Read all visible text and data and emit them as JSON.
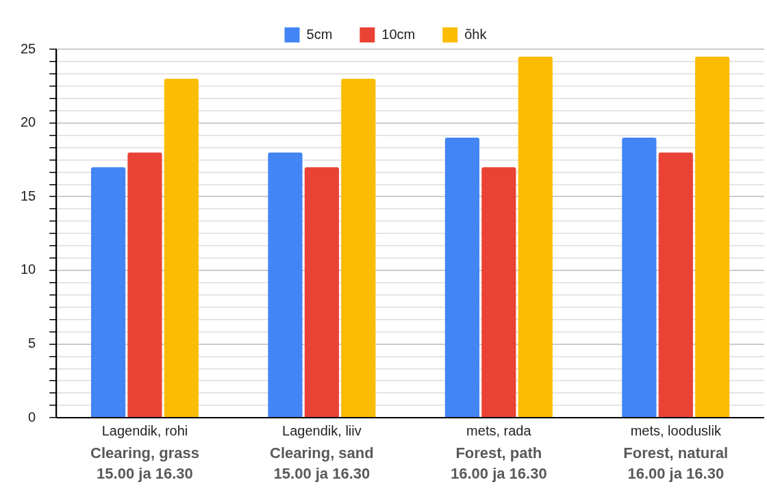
{
  "chart_data": {
    "type": "bar",
    "categories": [
      "Lagendik, rohi",
      "Lagendik, liiv",
      "mets, rada",
      "mets, looduslik"
    ],
    "series": [
      {
        "name": "5cm",
        "color": "#4285f4",
        "values": [
          17,
          18,
          19,
          19
        ]
      },
      {
        "name": "10cm",
        "color": "#ea4335",
        "values": [
          18,
          17,
          17,
          18
        ]
      },
      {
        "name": "õhk",
        "color": "#fbbc04",
        "values": [
          23,
          23,
          24.5,
          24.5
        ]
      }
    ],
    "ylim": [
      0,
      25
    ],
    "yticks": [
      0,
      {
        "value": 0.833,
        "label": null
      },
      {
        "value": 1.667,
        "label": null
      },
      {
        "value": 2.5,
        "label": null
      },
      {
        "value": 3.333,
        "label": null
      },
      {
        "value": 4.167,
        "label": null
      },
      5,
      {
        "value": 5.833,
        "label": null
      },
      {
        "value": 6.667,
        "label": null
      },
      {
        "value": 7.5,
        "label": null
      },
      {
        "value": 8.333,
        "label": null
      },
      {
        "value": 9.167,
        "label": null
      },
      10,
      {
        "value": 10.833,
        "label": null
      },
      {
        "value": 11.667,
        "label": null
      },
      {
        "value": 12.5,
        "label": null
      },
      {
        "value": 13.333,
        "label": null
      },
      {
        "value": 14.167,
        "label": null
      },
      15,
      {
        "value": 15.833,
        "label": null
      },
      {
        "value": 16.667,
        "label": null
      },
      {
        "value": 17.5,
        "label": null
      },
      {
        "value": 18.333,
        "label": null
      },
      {
        "value": 19.167,
        "label": null
      },
      20,
      {
        "value": 20.833,
        "label": null
      },
      {
        "value": 21.667,
        "label": null
      },
      {
        "value": 22.5,
        "label": null
      },
      {
        "value": 23.333,
        "label": null
      },
      {
        "value": 24.167,
        "label": null
      },
      25
    ],
    "grid": true,
    "legend": "top",
    "annotations": [
      "Clearing, grass\n15.00 ja 16.30",
      "Clearing, sand\n15.00 ja 16.30",
      "Forest, path\n16.00 ja 16.30",
      "Forest, natural\n16.00 ja 16.30"
    ]
  }
}
